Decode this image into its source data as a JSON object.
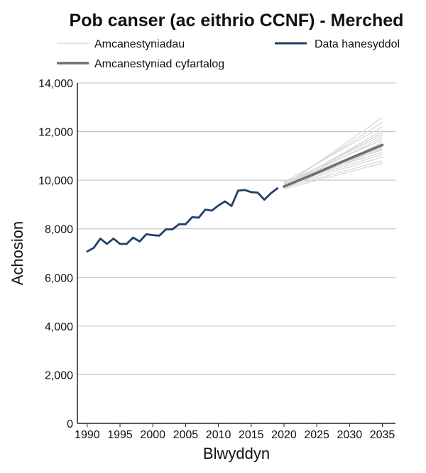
{
  "chart_data": {
    "type": "line",
    "title": "Pob canser (ac eithrio CCNF) - Merched",
    "xlabel": "Blwyddyn",
    "ylabel": "Achosion",
    "xlim": [
      1988.5,
      2037
    ],
    "ylim": [
      0,
      14000
    ],
    "x_ticks": [
      1990,
      1995,
      2000,
      2005,
      2010,
      2015,
      2020,
      2025,
      2030,
      2035
    ],
    "y_ticks": [
      0,
      2000,
      4000,
      6000,
      8000,
      10000,
      12000,
      14000
    ],
    "y_tick_labels": [
      "0",
      "2,000",
      "4,000",
      "6,000",
      "8,000",
      "10,000",
      "12,000",
      "14,000"
    ],
    "grid": "horizontal",
    "legend": {
      "position": "top",
      "entries": [
        "Amcanestyniadau",
        "Data hanesyddol",
        "Amcanestyniad cyfartalog"
      ]
    },
    "colors": {
      "historical": "#1f3f66",
      "average": "#6e6e6e",
      "projections": "#d9d9d9",
      "grid": "#bdbdbd",
      "axis": "#222222"
    },
    "series": [
      {
        "name": "Data hanesyddol",
        "x": [
          1990,
          1991,
          1992,
          1993,
          1994,
          1995,
          1996,
          1997,
          1998,
          1999,
          2000,
          2001,
          2002,
          2003,
          2004,
          2005,
          2006,
          2007,
          2008,
          2009,
          2010,
          2011,
          2012,
          2013,
          2014,
          2015,
          2016,
          2017,
          2018,
          2019
        ],
        "values": [
          7070,
          7220,
          7600,
          7380,
          7600,
          7380,
          7380,
          7640,
          7480,
          7780,
          7740,
          7720,
          7980,
          7980,
          8190,
          8190,
          8480,
          8460,
          8790,
          8750,
          8960,
          9130,
          8940,
          9570,
          9600,
          9510,
          9490,
          9200,
          9460,
          9670
        ]
      },
      {
        "name": "Amcanestyniad cyfartalog",
        "x": [
          2020,
          2025,
          2030,
          2035
        ],
        "values": [
          9740,
          10300,
          10890,
          11450
        ]
      }
    ],
    "projections": {
      "name": "Amcanestyniadau",
      "x": [
        2020,
        2035
      ],
      "start_values": [
        9640,
        9700,
        9760,
        9820,
        9880,
        9950,
        9690,
        9780,
        9720,
        9850,
        9800,
        9660,
        9900,
        9740,
        9830,
        9760,
        9700,
        9920,
        9810,
        9750
      ],
      "end_values": [
        10700,
        10800,
        10950,
        11050,
        11150,
        11250,
        11300,
        11350,
        11400,
        11450,
        11500,
        11550,
        11650,
        11750,
        11850,
        11950,
        12050,
        12200,
        12380,
        12580
      ]
    }
  }
}
